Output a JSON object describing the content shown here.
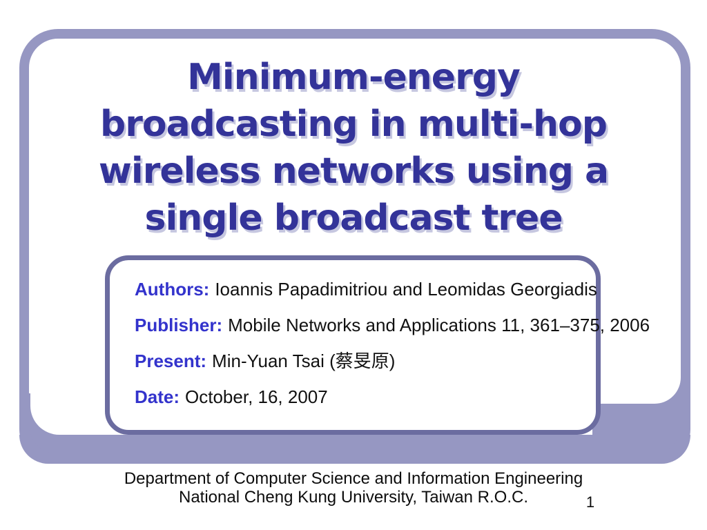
{
  "slide": {
    "title_lines": [
      "Minimum-energy",
      "broadcasting in multi-hop",
      "wireless networks using a",
      "single broadcast tree"
    ],
    "info_box": {
      "rows": [
        {
          "label": "Authors:",
          "value": "Ioannis Papadimitriou and Leomidas Georgiadis"
        },
        {
          "label": "Publisher:",
          "value": "Mobile Networks and Applications 11, 361–375, 2006"
        },
        {
          "label": "Present:",
          "value": "Min-Yuan Tsai (蔡旻原)"
        },
        {
          "label": "Date:",
          "value": "October, 16, 2007"
        }
      ]
    },
    "footer_lines": [
      "Department of Computer Science and Information Engineering",
      "National Cheng Kung University, Taiwan R.O.C."
    ],
    "page_number": "1",
    "colors": {
      "title": "#333399",
      "label": "#3333cc",
      "frame": "#9697c2",
      "box_border": "#6b6ca0",
      "body_text": "#111111"
    }
  }
}
